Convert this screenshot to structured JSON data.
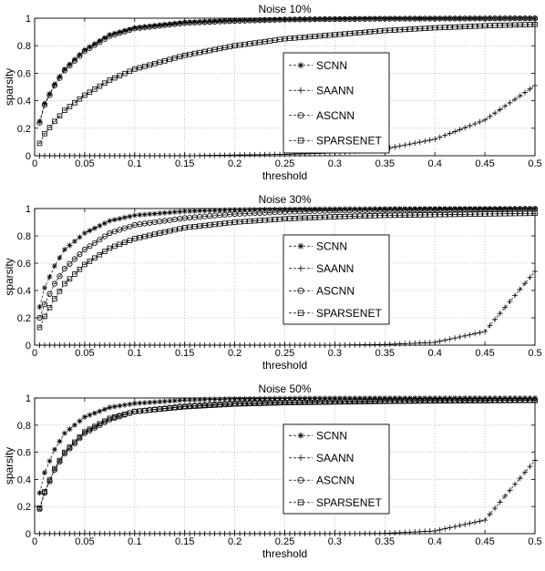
{
  "chart_data": [
    {
      "type": "line",
      "title": "Noise 10%",
      "xlabel": "threshold",
      "ylabel": "sparsity",
      "xlim": [
        0,
        0.5
      ],
      "ylim": [
        0,
        1
      ],
      "xticks": [
        "0",
        "0.05",
        "0.1",
        "0.15",
        "0.2",
        "0.25",
        "0.3",
        "0.35",
        "0.4",
        "0.45",
        "0.5"
      ],
      "yticks": [
        "0",
        "0.2",
        "0.4",
        "0.6",
        "0.8",
        "1"
      ],
      "grid": true,
      "legend_position": "center-right",
      "x": [
        0.005,
        0.01,
        0.02,
        0.03,
        0.05,
        0.075,
        0.1,
        0.15,
        0.2,
        0.25,
        0.3,
        0.35,
        0.4,
        0.45,
        0.5
      ],
      "series": [
        {
          "name": "SCNN",
          "marker": "asterisk",
          "values": [
            0.25,
            0.38,
            0.52,
            0.63,
            0.77,
            0.88,
            0.93,
            0.97,
            0.985,
            0.99,
            0.995,
            0.997,
            0.998,
            0.999,
            1.0
          ]
        },
        {
          "name": "SAANN",
          "marker": "plus",
          "values": [
            0.0,
            0.0,
            0.0,
            0.0,
            0.0,
            0.0,
            0.0,
            0.0,
            0.005,
            0.01,
            0.02,
            0.05,
            0.12,
            0.26,
            0.51
          ]
        },
        {
          "name": "ASCNN",
          "marker": "circle",
          "values": [
            0.24,
            0.37,
            0.51,
            0.62,
            0.76,
            0.87,
            0.925,
            0.965,
            0.98,
            0.99,
            0.993,
            0.996,
            0.997,
            0.998,
            0.999
          ]
        },
        {
          "name": "SPARSENET",
          "marker": "square",
          "values": [
            0.09,
            0.16,
            0.25,
            0.33,
            0.44,
            0.55,
            0.63,
            0.73,
            0.8,
            0.85,
            0.88,
            0.91,
            0.93,
            0.945,
            0.955
          ]
        }
      ]
    },
    {
      "type": "line",
      "title": "Noise 30%",
      "xlabel": "threshold",
      "ylabel": "sparsity",
      "xlim": [
        0,
        0.5
      ],
      "ylim": [
        0,
        1
      ],
      "xticks": [
        "0",
        "0.05",
        "0.1",
        "0.15",
        "0.2",
        "0.25",
        "0.3",
        "0.35",
        "0.4",
        "0.45",
        "0.5"
      ],
      "yticks": [
        "0",
        "0.2",
        "0.4",
        "0.6",
        "0.8",
        "1"
      ],
      "grid": true,
      "legend_position": "center-right",
      "x": [
        0.005,
        0.01,
        0.02,
        0.03,
        0.05,
        0.075,
        0.1,
        0.15,
        0.2,
        0.25,
        0.3,
        0.35,
        0.4,
        0.45,
        0.5
      ],
      "series": [
        {
          "name": "SCNN",
          "marker": "asterisk",
          "values": [
            0.28,
            0.42,
            0.58,
            0.7,
            0.82,
            0.91,
            0.95,
            0.98,
            0.99,
            0.995,
            0.997,
            0.998,
            0.999,
            0.999,
            1.0
          ]
        },
        {
          "name": "SAANN",
          "marker": "plus",
          "values": [
            0.0,
            0.0,
            0.0,
            0.0,
            0.0,
            0.0,
            0.0,
            0.0,
            0.0,
            0.0,
            0.0,
            0.005,
            0.02,
            0.1,
            0.54
          ]
        },
        {
          "name": "ASCNN",
          "marker": "circle",
          "values": [
            0.2,
            0.3,
            0.45,
            0.56,
            0.7,
            0.82,
            0.88,
            0.93,
            0.96,
            0.975,
            0.985,
            0.99,
            0.993,
            0.995,
            0.997
          ]
        },
        {
          "name": "SPARSENET",
          "marker": "square",
          "values": [
            0.13,
            0.21,
            0.34,
            0.45,
            0.59,
            0.71,
            0.78,
            0.86,
            0.9,
            0.925,
            0.94,
            0.95,
            0.955,
            0.96,
            0.965
          ]
        }
      ]
    },
    {
      "type": "line",
      "title": "Noise 50%",
      "xlabel": "threshold",
      "ylabel": "sparsity",
      "xlim": [
        0,
        0.5
      ],
      "ylim": [
        0,
        1
      ],
      "xticks": [
        "0",
        "0.05",
        "0.1",
        "0.15",
        "0.2",
        "0.25",
        "0.3",
        "0.35",
        "0.4",
        "0.45",
        "0.5"
      ],
      "yticks": [
        "0",
        "0.2",
        "0.4",
        "0.6",
        "0.8",
        "1"
      ],
      "grid": true,
      "legend_position": "center-right",
      "x": [
        0.005,
        0.01,
        0.02,
        0.03,
        0.05,
        0.075,
        0.1,
        0.15,
        0.2,
        0.25,
        0.3,
        0.35,
        0.4,
        0.45,
        0.5
      ],
      "series": [
        {
          "name": "SCNN",
          "marker": "asterisk",
          "values": [
            0.3,
            0.45,
            0.62,
            0.74,
            0.86,
            0.93,
            0.96,
            0.985,
            0.993,
            0.996,
            0.998,
            0.999,
            0.999,
            1.0,
            1.0
          ]
        },
        {
          "name": "SAANN",
          "marker": "plus",
          "values": [
            0.0,
            0.0,
            0.0,
            0.0,
            0.0,
            0.0,
            0.0,
            0.0,
            0.0,
            0.0,
            0.0,
            0.002,
            0.02,
            0.1,
            0.54
          ]
        },
        {
          "name": "ASCNN",
          "marker": "circle",
          "values": [
            0.18,
            0.3,
            0.47,
            0.59,
            0.74,
            0.84,
            0.9,
            0.94,
            0.96,
            0.97,
            0.975,
            0.98,
            0.982,
            0.984,
            0.985
          ]
        },
        {
          "name": "SPARSENET",
          "marker": "square",
          "values": [
            0.19,
            0.31,
            0.48,
            0.6,
            0.75,
            0.85,
            0.9,
            0.935,
            0.955,
            0.965,
            0.97,
            0.975,
            0.978,
            0.98,
            0.982
          ]
        }
      ]
    }
  ]
}
